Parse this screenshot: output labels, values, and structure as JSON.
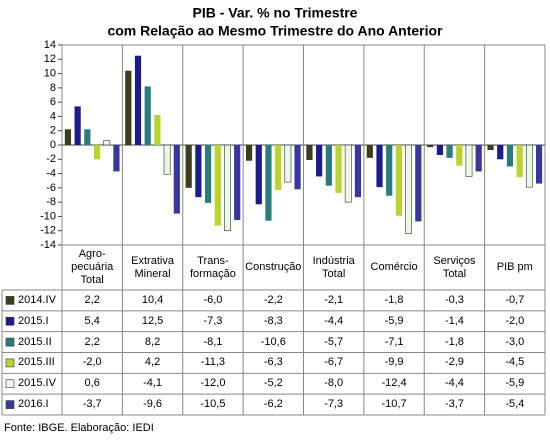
{
  "chart_data": {
    "type": "bar",
    "title": "PIB - Var. % no Trimestre",
    "subtitle": "com Relação ao Mesmo Trimestre do Ano Anterior",
    "categories": [
      "Agro-\npecuária\nTotal",
      "Extrativa\nMineral",
      "Trans-\nformação",
      "Construção",
      "Indústria\nTotal",
      "Comércio",
      "Serviços\nTotal",
      "PIB pm"
    ],
    "ylim": [
      -14,
      14
    ],
    "yticks": [
      14,
      12,
      10,
      8,
      6,
      4,
      2,
      0,
      -2,
      -4,
      -6,
      -8,
      -10,
      -12,
      -14
    ],
    "series": [
      {
        "name": "2014.IV",
        "color": "#3d3d1c",
        "values": [
          2.2,
          10.4,
          -6.0,
          -2.2,
          -2.1,
          -1.8,
          -0.3,
          -0.7
        ],
        "value_labels": [
          "2,2",
          "10,4",
          "-6,0",
          "-2,2",
          "-2,1",
          "-1,8",
          "-0,3",
          "-0,7"
        ]
      },
      {
        "name": "2015.I",
        "color": "#1c1c8c",
        "values": [
          5.4,
          12.5,
          -7.3,
          -8.3,
          -4.4,
          -5.9,
          -1.4,
          -2.0
        ],
        "value_labels": [
          "5,4",
          "12,5",
          "-7,3",
          "-8,3",
          "-4,4",
          "-5,9",
          "-1,4",
          "-2,0"
        ]
      },
      {
        "name": "2015.II",
        "color": "#2a7c7c",
        "values": [
          2.2,
          8.2,
          -8.1,
          -10.6,
          -5.7,
          -7.1,
          -1.8,
          -3.0
        ],
        "value_labels": [
          "2,2",
          "8,2",
          "-8,1",
          "-10,6",
          "-5,7",
          "-7,1",
          "-1,8",
          "-3,0"
        ]
      },
      {
        "name": "2015.III",
        "color": "#b9d52c",
        "values": [
          -2.0,
          4.2,
          -11.3,
          -6.3,
          -6.7,
          -9.9,
          -2.9,
          -4.5
        ],
        "value_labels": [
          "-2,0",
          "4,2",
          "-11,3",
          "-6,3",
          "-6,7",
          "-9,9",
          "-2,9",
          "-4,5"
        ]
      },
      {
        "name": "2015.IV",
        "color": "#eaf8e4",
        "values": [
          0.6,
          -4.1,
          -12.0,
          -5.2,
          -8.0,
          -12.4,
          -4.4,
          -5.9
        ],
        "value_labels": [
          "0,6",
          "-4,1",
          "-12,0",
          "-5,2",
          "-8,0",
          "-12,4",
          "-4,4",
          "-5,9"
        ]
      },
      {
        "name": "2016.I",
        "color": "#38389c",
        "values": [
          -3.7,
          -9.6,
          -10.5,
          -6.2,
          -7.3,
          -10.7,
          -3.7,
          -5.4
        ],
        "value_labels": [
          "-3,7",
          "-9,6",
          "-10,5",
          "-6,2",
          "-7,3",
          "-10,7",
          "-3,7",
          "-5,4"
        ]
      }
    ],
    "source": "Fonte: IBGE. Elaboração: IEDI"
  }
}
